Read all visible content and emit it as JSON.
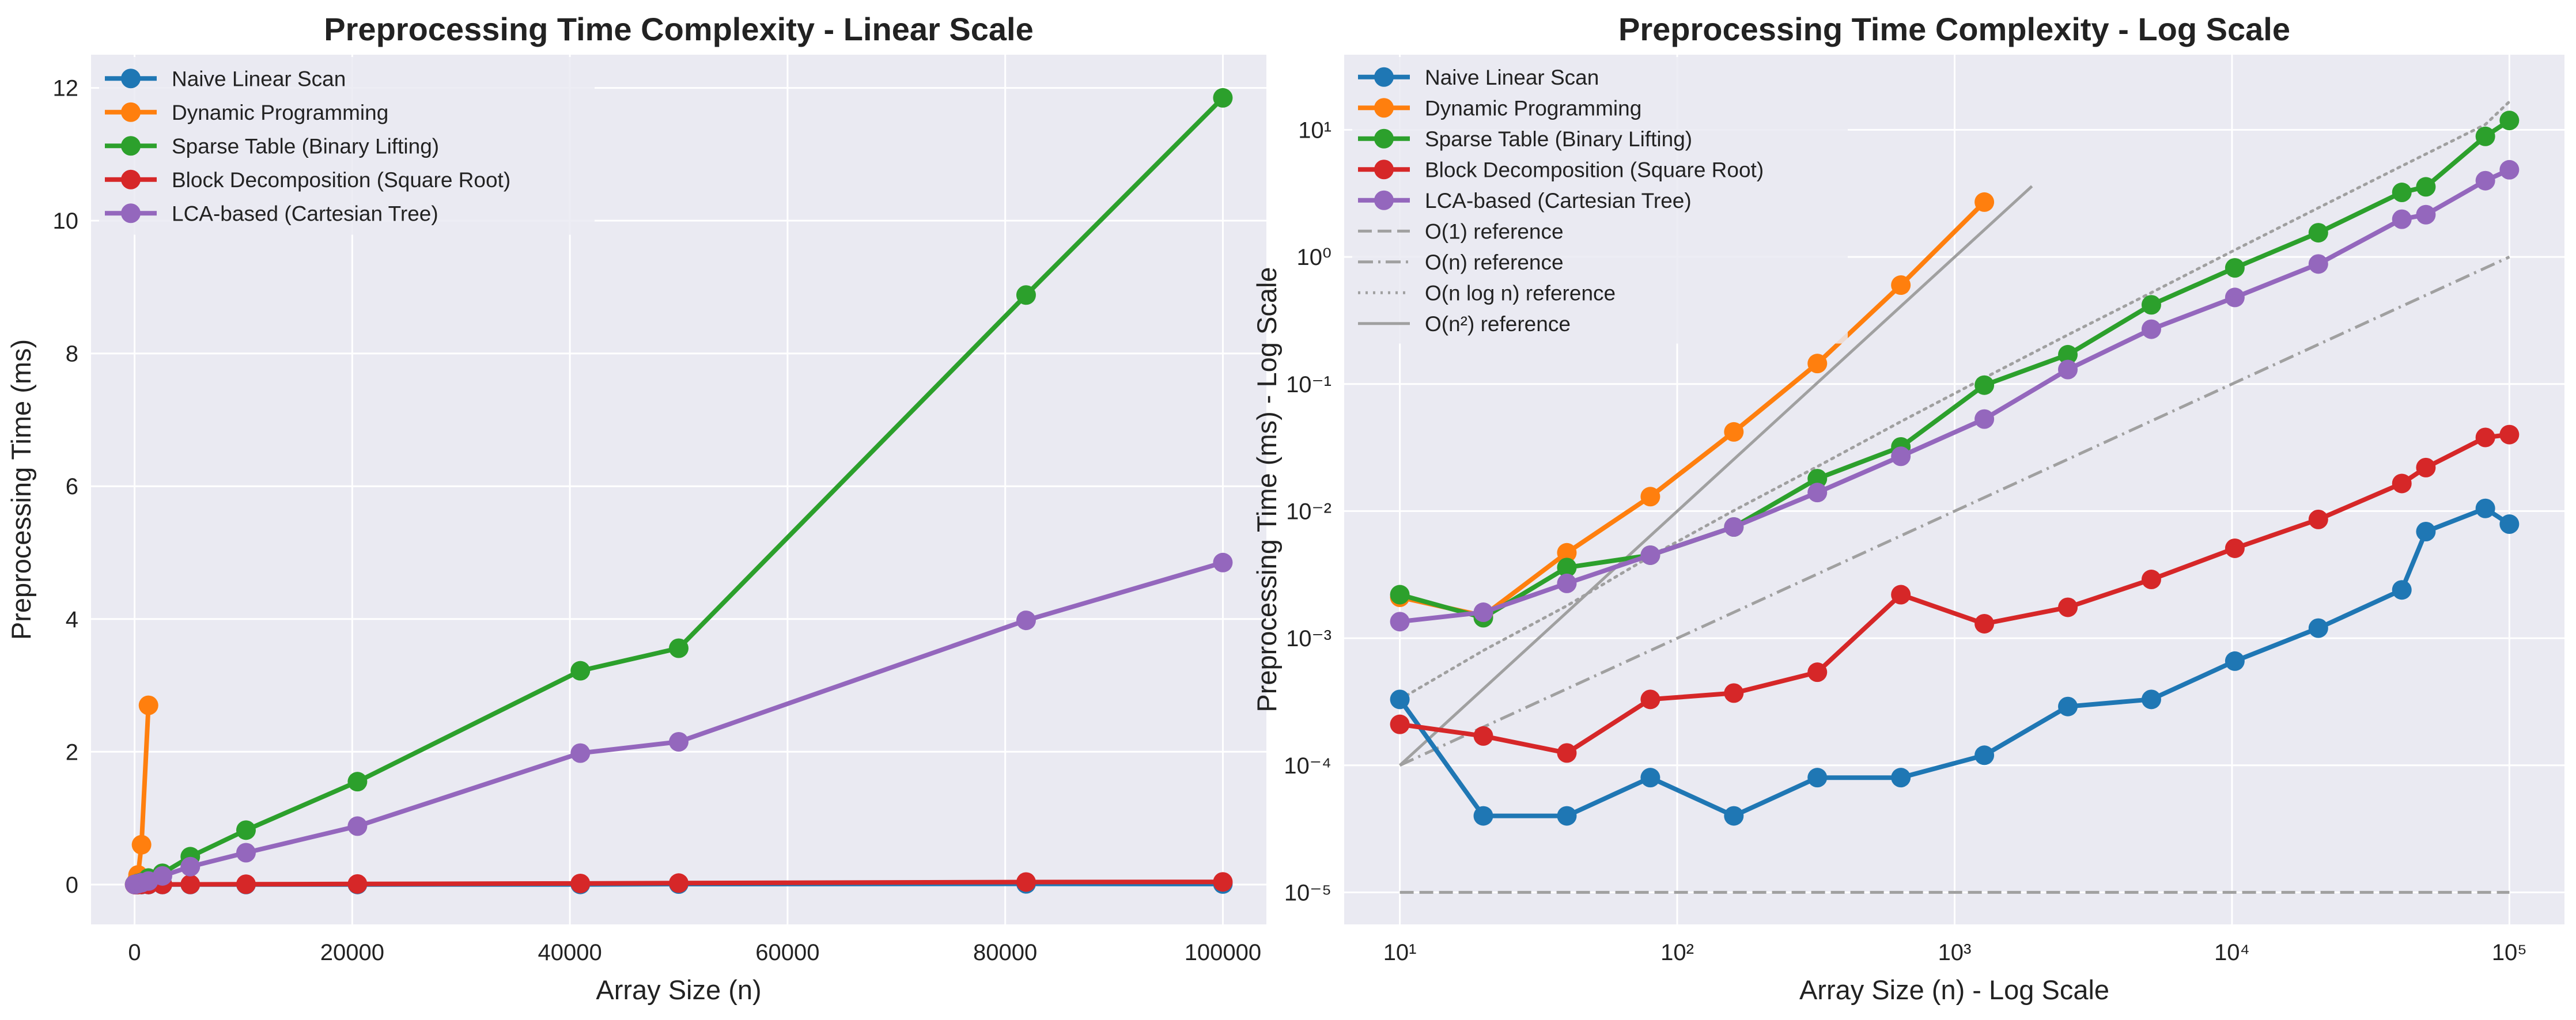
{
  "chart_data": [
    {
      "type": "line",
      "title": "Preprocessing Time Complexity - Linear Scale",
      "xlabel": "Array Size (n)",
      "ylabel": "Preprocessing Time (ms)",
      "xscale": "linear",
      "yscale": "linear",
      "xlim": [
        -4000,
        104000
      ],
      "ylim": [
        -0.6,
        12.5
      ],
      "xticks": [
        0,
        20000,
        40000,
        60000,
        80000,
        100000
      ],
      "xtick_labels": [
        "0",
        "20000",
        "40000",
        "60000",
        "80000",
        "100000"
      ],
      "yticks": [
        0,
        2,
        4,
        6,
        8,
        10,
        12
      ],
      "ytick_labels": [
        "0",
        "2",
        "4",
        "6",
        "8",
        "10",
        "12"
      ],
      "grid": true,
      "legend_position": "top-left",
      "series": [
        {
          "name": "Naive Linear Scan",
          "color": "#1f77b4",
          "style": "solid",
          "marker": true,
          "x": [
            10,
            20,
            40,
            80,
            160,
            320,
            640,
            1280,
            2560,
            5120,
            10240,
            20480,
            40960,
            50000,
            81920,
            100000
          ],
          "y": [
            0.00033,
            4e-05,
            4e-05,
            8e-05,
            4e-05,
            8e-05,
            8e-05,
            0.00012,
            0.00029,
            0.00033,
            0.00066,
            0.0012,
            0.0024,
            0.0069,
            0.0105,
            0.0079
          ]
        },
        {
          "name": "Dynamic Programming",
          "color": "#ff7f0e",
          "style": "solid",
          "marker": true,
          "x": [
            10,
            20,
            40,
            80,
            160,
            320,
            640,
            1280
          ],
          "y": [
            0.0021,
            0.0015,
            0.0047,
            0.013,
            0.042,
            0.145,
            0.6,
            2.7
          ]
        },
        {
          "name": "Sparse Table (Binary Lifting)",
          "color": "#2ca02c",
          "style": "solid",
          "marker": true,
          "x": [
            10,
            20,
            40,
            80,
            160,
            320,
            640,
            1280,
            2560,
            5120,
            10240,
            20480,
            40960,
            50000,
            81920,
            100000
          ],
          "y": [
            0.0022,
            0.00145,
            0.0036,
            0.0045,
            0.0075,
            0.018,
            0.032,
            0.098,
            0.17,
            0.42,
            0.82,
            1.55,
            3.22,
            3.56,
            8.88,
            11.85
          ]
        },
        {
          "name": "Block Decomposition (Square Root)",
          "color": "#d62728",
          "style": "solid",
          "marker": true,
          "x": [
            10,
            20,
            40,
            80,
            160,
            320,
            640,
            1280,
            2560,
            5120,
            10240,
            20480,
            40960,
            50000,
            81920,
            100000
          ],
          "y": [
            0.00021,
            0.00017,
            0.000125,
            0.00033,
            0.00037,
            0.00054,
            0.0022,
            0.0013,
            0.00175,
            0.0029,
            0.0051,
            0.0086,
            0.0165,
            0.022,
            0.038,
            0.04
          ]
        },
        {
          "name": "LCA-based (Cartesian Tree)",
          "color": "#9467bd",
          "style": "solid",
          "marker": true,
          "x": [
            10,
            20,
            40,
            80,
            160,
            320,
            640,
            1280,
            2560,
            5120,
            10240,
            20480,
            40960,
            50000,
            81920,
            100000
          ],
          "y": [
            0.00135,
            0.0016,
            0.0027,
            0.0045,
            0.0075,
            0.014,
            0.027,
            0.053,
            0.13,
            0.27,
            0.48,
            0.88,
            1.98,
            2.15,
            3.98,
            4.85
          ]
        }
      ]
    },
    {
      "type": "line",
      "title": "Preprocessing Time Complexity - Log Scale",
      "xlabel": "Array Size (n) - Log Scale",
      "ylabel": "Preprocessing Time (ms) - Log Scale",
      "xscale": "log",
      "yscale": "log",
      "xlim": [
        6.3,
        158000
      ],
      "ylim": [
        5.6e-06,
        39
      ],
      "xticks": [
        10,
        100,
        1000,
        10000,
        100000
      ],
      "xtick_labels": [
        "10¹",
        "10²",
        "10³",
        "10⁴",
        "10⁵"
      ],
      "yticks": [
        1e-05,
        0.0001,
        0.001,
        0.01,
        0.1,
        1,
        10
      ],
      "ytick_labels": [
        "10⁻⁵",
        "10⁻⁴",
        "10⁻³",
        "10⁻²",
        "10⁻¹",
        "10⁰",
        "10¹"
      ],
      "grid": true,
      "legend_position": "top-left",
      "series": [
        {
          "name": "Naive Linear Scan",
          "color": "#1f77b4",
          "style": "solid",
          "marker": true,
          "x": [
            10,
            20,
            40,
            80,
            160,
            320,
            640,
            1280,
            2560,
            5120,
            10240,
            20480,
            40960,
            50000,
            81920,
            100000
          ],
          "y": [
            0.00033,
            4e-05,
            4e-05,
            8e-05,
            4e-05,
            8e-05,
            8e-05,
            0.00012,
            0.00029,
            0.00033,
            0.00066,
            0.0012,
            0.0024,
            0.0069,
            0.0105,
            0.0079
          ]
        },
        {
          "name": "Dynamic Programming",
          "color": "#ff7f0e",
          "style": "solid",
          "marker": true,
          "x": [
            10,
            20,
            40,
            80,
            160,
            320,
            640,
            1280
          ],
          "y": [
            0.0021,
            0.0015,
            0.0047,
            0.013,
            0.042,
            0.145,
            0.6,
            2.7
          ]
        },
        {
          "name": "Sparse Table (Binary Lifting)",
          "color": "#2ca02c",
          "style": "solid",
          "marker": true,
          "x": [
            10,
            20,
            40,
            80,
            160,
            320,
            640,
            1280,
            2560,
            5120,
            10240,
            20480,
            40960,
            50000,
            81920,
            100000
          ],
          "y": [
            0.0022,
            0.00145,
            0.0036,
            0.0045,
            0.0075,
            0.018,
            0.032,
            0.098,
            0.17,
            0.42,
            0.82,
            1.55,
            3.22,
            3.56,
            8.88,
            11.85
          ]
        },
        {
          "name": "Block Decomposition (Square Root)",
          "color": "#d62728",
          "style": "solid",
          "marker": true,
          "x": [
            10,
            20,
            40,
            80,
            160,
            320,
            640,
            1280,
            2560,
            5120,
            10240,
            20480,
            40960,
            50000,
            81920,
            100000
          ],
          "y": [
            0.00021,
            0.00017,
            0.000125,
            0.00033,
            0.00037,
            0.00054,
            0.0022,
            0.0013,
            0.00175,
            0.0029,
            0.0051,
            0.0086,
            0.0165,
            0.022,
            0.038,
            0.04
          ]
        },
        {
          "name": "LCA-based (Cartesian Tree)",
          "color": "#9467bd",
          "style": "solid",
          "marker": true,
          "x": [
            10,
            20,
            40,
            80,
            160,
            320,
            640,
            1280,
            2560,
            5120,
            10240,
            20480,
            40960,
            50000,
            81920,
            100000
          ],
          "y": [
            0.00135,
            0.0016,
            0.0027,
            0.0045,
            0.0075,
            0.014,
            0.027,
            0.053,
            0.13,
            0.27,
            0.48,
            0.88,
            1.98,
            2.15,
            3.98,
            4.85
          ]
        },
        {
          "name": "O(1) reference",
          "color": "#a0a0a0",
          "style": "dashed",
          "marker": false,
          "x": [
            10,
            100000
          ],
          "y": [
            1e-05,
            1e-05
          ]
        },
        {
          "name": "O(n) reference",
          "color": "#a0a0a0",
          "style": "dashdot",
          "marker": false,
          "x": [
            10,
            100000
          ],
          "y": [
            0.0001,
            1.0
          ]
        },
        {
          "name": "O(n log n) reference",
          "color": "#a0a0a0",
          "style": "dotted",
          "marker": false,
          "x": [
            10,
            20,
            40,
            80,
            160,
            320,
            640,
            1280,
            2560,
            5120,
            10240,
            20480,
            40960,
            81920,
            100000
          ],
          "y": [
            0.00033,
            0.0008,
            0.0018,
            0.0044,
            0.0101,
            0.0224,
            0.0506,
            0.1116,
            0.2436,
            0.5234,
            1.1346,
            2.4338,
            5.1946,
            11.019,
            16.67
          ]
        },
        {
          "name": "O(n²) reference",
          "color": "#a0a0a0",
          "style": "solid",
          "marker": false,
          "x": [
            10,
            1900
          ],
          "y": [
            0.0001,
            3.6
          ]
        }
      ]
    }
  ]
}
